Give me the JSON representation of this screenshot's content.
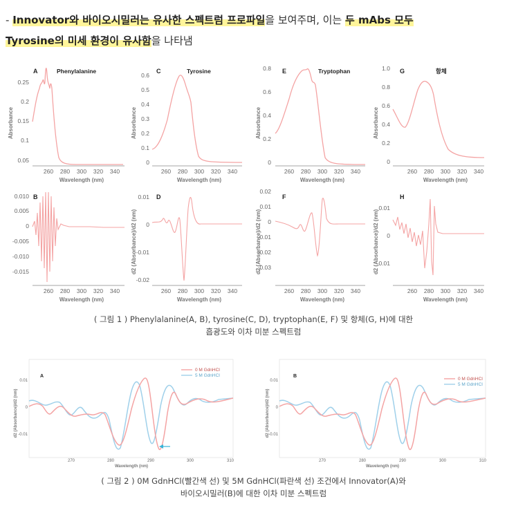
{
  "heading": {
    "dash": "- ",
    "hl1": "Innovator와 바이오시밀러는 유사한 스펙트럼 프로파일",
    "t1": "을 보여주며, 이는 ",
    "hl2": "두 mAbs 모두",
    "hl3": "Tyrosine의 미세 환경이 유사함",
    "t2": "을 나타냄"
  },
  "figure1": {
    "caption_line1": "( 그림 1 ) Phenylalanine(A, B), tyrosine(C, D), tryptophan(E, F) 및 항체(G, H)에 대한",
    "caption_line2": "흡광도와 이차 미분 스펙트럼",
    "xlabel": "Wavelength (nm)",
    "ylabel_top": "Absorbance",
    "ylabel_bottom": "d2 (Absorbance)/d2 (nm)",
    "xticks": [
      "260",
      "280",
      "300",
      "320",
      "340"
    ],
    "panels": [
      {
        "letter": "A",
        "title": "Phenylalanine",
        "yticks": [
          "0.25",
          "0.2",
          "0.15",
          "0.1",
          "0.05"
        ]
      },
      {
        "letter": "C",
        "title": "Tyrosine",
        "yticks": [
          "0.6",
          "0.5",
          "0.4",
          "0.3",
          "0.2",
          "0.1",
          "0"
        ]
      },
      {
        "letter": "E",
        "title": "Tryptophan",
        "yticks": [
          "0.8",
          "0.6",
          "0.4",
          "0.2",
          "0"
        ]
      },
      {
        "letter": "G",
        "title": "항체",
        "yticks": [
          "1.0",
          "0.8",
          "0.6",
          "0.4",
          "0.2",
          "0"
        ]
      },
      {
        "letter": "B",
        "title": "",
        "yticks": [
          "0.010",
          "0.005",
          "0",
          "-0.005",
          "-0.010",
          "-0.015"
        ]
      },
      {
        "letter": "D",
        "title": "",
        "yticks": [
          "0.01",
          "0",
          "-0.01",
          "-0.02"
        ]
      },
      {
        "letter": "F",
        "title": "",
        "yticks": [
          "0.02",
          "0.01",
          "0",
          "-0.01",
          "-0.02",
          "-0.03"
        ]
      },
      {
        "letter": "H",
        "title": "",
        "yticks": [
          "0.01",
          "0",
          "-0.01"
        ]
      }
    ]
  },
  "figure2": {
    "caption_line1": "( 그림 2 ) 0M GdnHCl(빨간색 선) 및 5M GdnHCl(파란색 선) 조건에서 Innovator(A)와",
    "caption_line2": "바이오시밀러(B)에 대한 이차 미분 스펙트럼",
    "xlabel": "Wavelength (nm)",
    "ylabel": "d2 (Absorbance)/d2 (nm)",
    "xticks": [
      "270",
      "280",
      "290",
      "300",
      "310"
    ],
    "yticks": [
      "0.01",
      "0",
      "-0.01"
    ],
    "legend": [
      "0 M GdnHCl",
      "5 M GdnHCl"
    ],
    "panels": [
      {
        "letter": "A"
      },
      {
        "letter": "B"
      }
    ]
  },
  "colors": {
    "red": "#f4a3a3",
    "blue": "#9fd0ea",
    "highlight": "#fff59a",
    "arrow": "#39b4d8"
  }
}
